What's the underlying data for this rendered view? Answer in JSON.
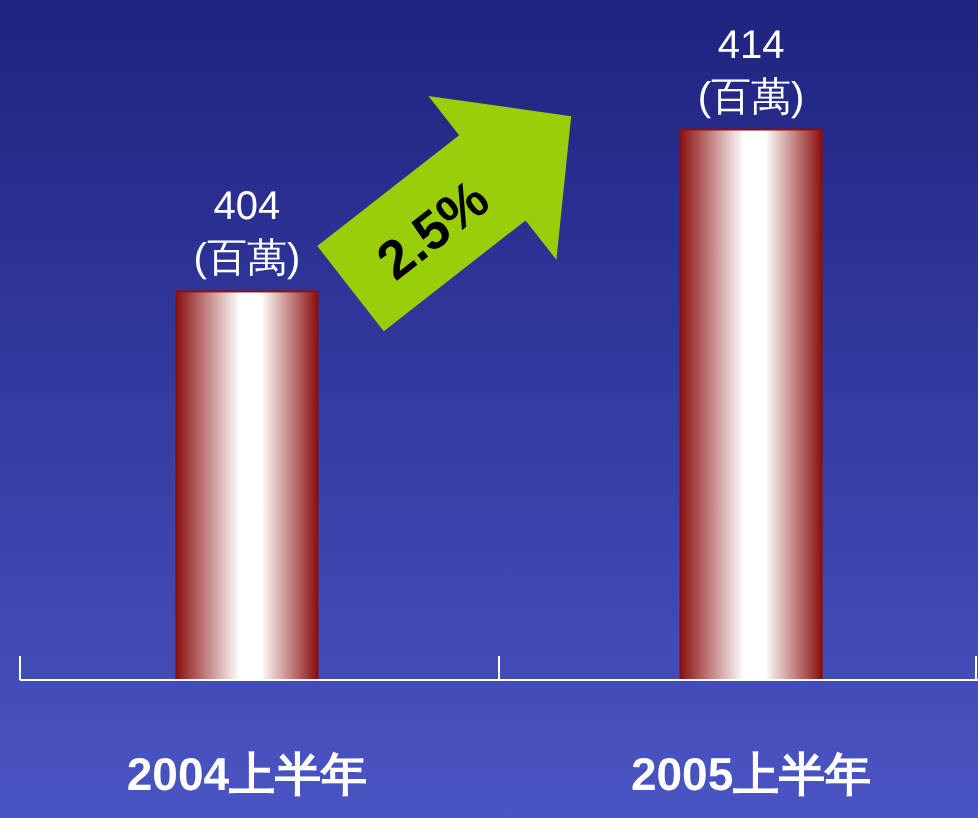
{
  "chart_data": {
    "type": "bar",
    "categories": [
      "2004上半年",
      "2005上半年"
    ],
    "series": [
      {
        "color": "#8b1010",
        "values": [
          404,
          414
        ]
      }
    ],
    "data_labels": true,
    "ylim": [
      380,
      422
    ],
    "tick_labels": "x",
    "annotations": [
      {
        "text": "(百萬)",
        "x": "2004上半年",
        "y": 404
      },
      {
        "text": "(百萬)",
        "x": "2005上半年",
        "y": 414
      },
      "2.5%"
    ]
  }
}
